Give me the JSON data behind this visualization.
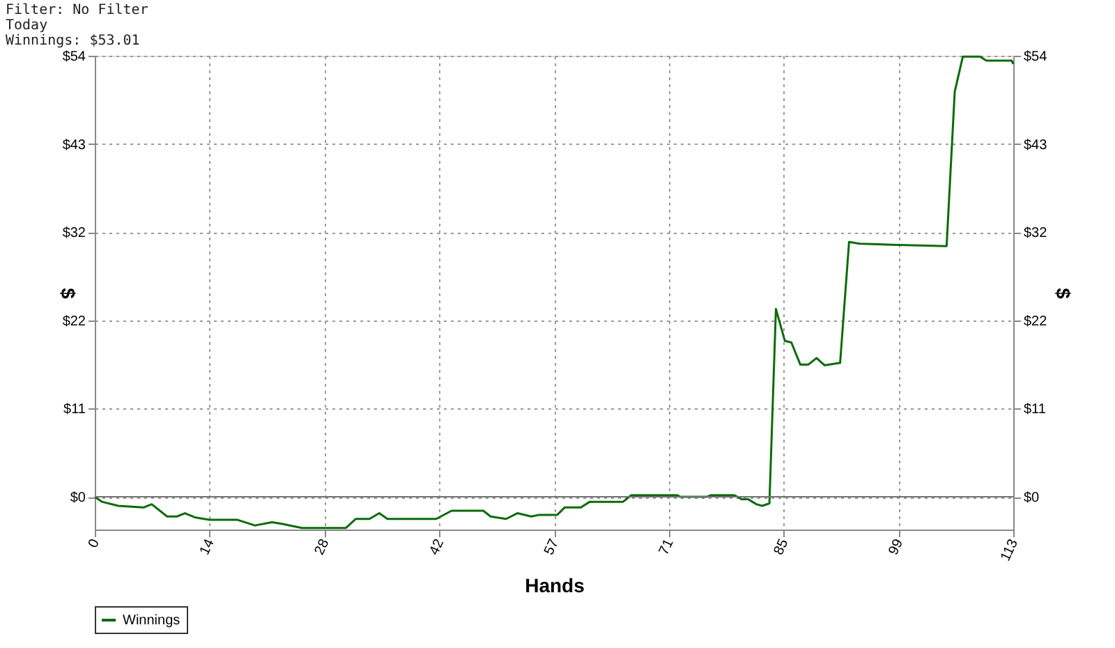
{
  "chart_data": {
    "type": "line",
    "annotations": [
      "Filter: No Filter",
      "Today",
      "Winnings: $53.01"
    ],
    "xlabel": "Hands",
    "ylabel": "$",
    "y2label": "$",
    "x": [
      0,
      0.9,
      2.9,
      6.0,
      7.0,
      8.9,
      10.1,
      11.1,
      12.3,
      14.1,
      17.5,
      19.7,
      21.8,
      23.0,
      25.5,
      30.9,
      32.1,
      33.8,
      35.0,
      36.0,
      42.0,
      43.9,
      47.8,
      48.7,
      50.6,
      52.0,
      53.7,
      54.7,
      56.9,
      57.8,
      59.8,
      60.9,
      65.0,
      66.0,
      71.7,
      72.0,
      75.3,
      75.8,
      78.7,
      79.6,
      80.4,
      81.4,
      82.1,
      83.0,
      83.8,
      84.9,
      85.7,
      86.8,
      87.8,
      88.8,
      89.8,
      91.7,
      92.8,
      94.1,
      96.9,
      104.8,
      105.8,
      106.8,
      108.9,
      109.7,
      112.8,
      113
    ],
    "series": [
      {
        "name": "Winnings",
        "color": "#0b6b0b",
        "values": [
          0,
          -0.6,
          -1.1,
          -1.3,
          -0.9,
          -2.4,
          -2.4,
          -2.0,
          -2.5,
          -2.8,
          -2.8,
          -3.5,
          -3.1,
          -3.3,
          -3.8,
          -3.8,
          -2.7,
          -2.7,
          -2.0,
          -2.7,
          -2.7,
          -1.7,
          -1.7,
          -2.4,
          -2.7,
          -2.0,
          -2.4,
          -2.2,
          -2.2,
          -1.3,
          -1.3,
          -0.6,
          -0.6,
          0.2,
          0.2,
          0,
          0,
          0.2,
          0.2,
          -0.3,
          -0.3,
          -0.9,
          -1.1,
          -0.8,
          23.0,
          19.1,
          18.9,
          16.2,
          16.2,
          17.0,
          16.1,
          16.4,
          31.2,
          31.0,
          30.9,
          30.7,
          49.6,
          53.9,
          53.9,
          53.4,
          53.4,
          53.0
        ]
      }
    ],
    "xlim": [
      0,
      113
    ],
    "xticks": [
      {
        "value": 0,
        "label": "0"
      },
      {
        "value": 14.125,
        "label": "14"
      },
      {
        "value": 28.25,
        "label": "28"
      },
      {
        "value": 42.375,
        "label": "42"
      },
      {
        "value": 56.5,
        "label": "57"
      },
      {
        "value": 70.625,
        "label": "71"
      },
      {
        "value": 84.75,
        "label": "85"
      },
      {
        "value": 98.875,
        "label": "99"
      },
      {
        "value": 113,
        "label": "113"
      }
    ],
    "ylim": [
      -4,
      54
    ],
    "yticks": [
      {
        "value": 0,
        "label": "$0"
      },
      {
        "value": 10.8,
        "label": "$11"
      },
      {
        "value": 21.6,
        "label": "$22"
      },
      {
        "value": 32.4,
        "label": "$32"
      },
      {
        "value": 43.2,
        "label": "$43"
      },
      {
        "value": 54,
        "label": "$54"
      }
    ],
    "y2lim": [
      -4,
      54
    ],
    "y2ticks": [
      {
        "value": 0,
        "label": "$0"
      },
      {
        "value": 10.8,
        "label": "$11"
      },
      {
        "value": 21.6,
        "label": "$22"
      },
      {
        "value": 32.4,
        "label": "$32"
      },
      {
        "value": 43.2,
        "label": "$43"
      },
      {
        "value": 54,
        "label": "$54"
      }
    ],
    "ref_lines": [
      {
        "axis": "y",
        "value": 0,
        "color": "#707070"
      }
    ],
    "grid": true,
    "legend": "bottom left",
    "marker": "none",
    "line_style": "solid"
  }
}
